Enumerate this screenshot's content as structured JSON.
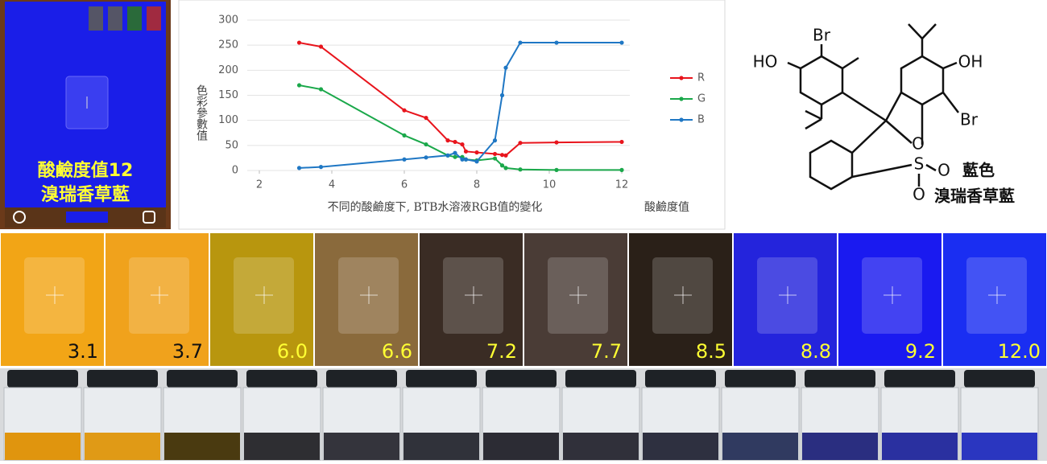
{
  "phone": {
    "ph_label": "酸鹼度值12",
    "name": "溴瑞香草藍"
  },
  "chart_data": {
    "type": "line",
    "y_label": "色彩參數值",
    "x_caption": "不同的酸鹼度下, BTB水溶液RGB值的變化",
    "x_label": "酸鹼度值",
    "x": [
      3.1,
      3.7,
      6.0,
      6.6,
      7.2,
      7.4,
      7.6,
      7.7,
      8.0,
      8.5,
      8.7,
      8.8,
      9.2,
      10.2,
      12.0
    ],
    "series": [
      {
        "name": "R",
        "color": "#e8141c",
        "values": [
          255,
          247,
          120,
          105,
          60,
          57,
          52,
          38,
          36,
          33,
          31,
          30,
          55,
          56,
          57
        ]
      },
      {
        "name": "G",
        "color": "#1aa84a",
        "values": [
          170,
          162,
          70,
          52,
          30,
          27,
          27,
          22,
          20,
          24,
          10,
          5,
          2,
          1,
          1
        ]
      },
      {
        "name": "B",
        "color": "#1f77c4",
        "values": [
          5,
          7,
          22,
          26,
          30,
          35,
          22,
          22,
          18,
          60,
          150,
          205,
          255,
          255,
          255
        ]
      }
    ],
    "xlim": [
      2,
      12
    ],
    "xticks": [
      2,
      4,
      6,
      8,
      10,
      12
    ],
    "ylim": [
      0,
      300
    ],
    "yticks": [
      0,
      50,
      100,
      150,
      200,
      250,
      300
    ],
    "grid": true,
    "legend": "right"
  },
  "structure": {
    "atoms": [
      "Br",
      "HO",
      "OH",
      "Br",
      "S",
      "O",
      "O",
      "O"
    ],
    "color_label": "藍色",
    "name": "溴瑞香草藍"
  },
  "panels": [
    {
      "label": "3.1",
      "color": "#f2a516",
      "label_color": "#111111"
    },
    {
      "label": "3.7",
      "color": "#f0a21c",
      "label_color": "#111111"
    },
    {
      "label": "6.0",
      "color": "#b8960e",
      "label_color": "#ffff33"
    },
    {
      "label": "6.6",
      "color": "#8a6a3c",
      "label_color": "#ffff33"
    },
    {
      "label": "7.2",
      "color": "#3a2c24",
      "label_color": "#ffff33"
    },
    {
      "label": "7.7",
      "color": "#4a3c36",
      "label_color": "#ffff33"
    },
    {
      "label": "8.5",
      "color": "#2a2018",
      "label_color": "#ffff33"
    },
    {
      "label": "8.8",
      "color": "#2424dc",
      "label_color": "#ffff33"
    },
    {
      "label": "9.2",
      "color": "#1a1af0",
      "label_color": "#ffff33"
    },
    {
      "label": "12.0",
      "color": "#1a2ef2",
      "label_color": "#ffff33"
    }
  ]
}
